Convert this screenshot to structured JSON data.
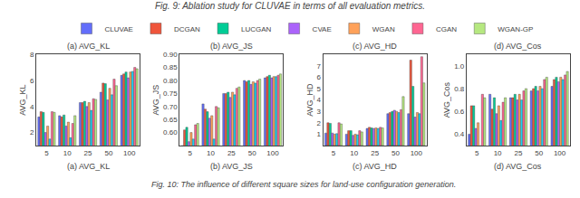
{
  "title": "Fig. 9: Ablation study for CLUVAE in terms of all evaluation metrics.",
  "subtitle": "Fig. 10: The influence of different square sizes for land-use configuration generation.",
  "legend": "top",
  "chart_data": [
    {
      "type": "bar",
      "title": "(a) AVG_KL",
      "subtitle": "(a) AVG_KL",
      "y_label": "AVG_KL",
      "categories": [
        "5",
        "10",
        "25",
        "50",
        "100"
      ],
      "ylim": [
        1,
        8
      ],
      "yticks": [
        2,
        4,
        6,
        8
      ],
      "grid": false,
      "series": [
        {
          "name": "CLUVAE",
          "color": "#636efa",
          "values": [
            3.2,
            3.3,
            4.3,
            5.1,
            6.4
          ]
        },
        {
          "name": "DCGAN",
          "color": "#EF553B",
          "values": [
            3.6,
            3.2,
            4.3,
            5.8,
            6.5
          ]
        },
        {
          "name": "LUCGAN",
          "color": "#00cc96",
          "values": [
            3.55,
            3.35,
            4.4,
            5.75,
            6.65
          ]
        },
        {
          "name": "CVAE",
          "color": "#ab63fa",
          "values": [
            2.0,
            2.5,
            4.0,
            4.5,
            6.2
          ]
        },
        {
          "name": "WGAN",
          "color": "#FFA15A",
          "values": [
            2.5,
            2.8,
            4.3,
            5.4,
            6.65
          ]
        },
        {
          "color": "#19d3f3",
          "values": [
            1.5,
            1.6,
            3.7,
            4.9,
            6.7
          ]
        },
        {
          "name": "CGAN",
          "color": "#FF6692",
          "values": [
            3.6,
            2.7,
            4.6,
            6.1,
            7.0
          ]
        },
        {
          "name": "WGAN-GP",
          "color": "#B6E880",
          "values": [
            3.55,
            3.3,
            4.55,
            5.6,
            6.9
          ]
        }
      ]
    },
    {
      "type": "bar",
      "title": "(b) AVG_JS",
      "subtitle": "(b) AVG_JS",
      "y_label": "AVG_JS",
      "categories": [
        "5",
        "10",
        "25",
        "50",
        "100"
      ],
      "ylim": [
        0.55,
        0.9
      ],
      "yticks": [
        {
          "value": 0.6,
          "label": "0.60"
        },
        0.65,
        {
          "value": 0.7,
          "label": "0.70"
        },
        0.75,
        {
          "value": 0.8,
          "label": "0.80"
        },
        0.85,
        {
          "value": 0.9,
          "label": "0.90"
        }
      ],
      "grid": false,
      "series": [
        {
          "name": "CLUVAE",
          "color": "#636efa",
          "values": [
            0.55,
            0.71,
            0.75,
            0.8,
            0.81
          ]
        },
        {
          "name": "DCGAN",
          "color": "#EF553B",
          "values": [
            0.61,
            0.69,
            0.75,
            0.795,
            0.815
          ]
        },
        {
          "name": "LUCGAN",
          "color": "#00cc96",
          "values": [
            0.62,
            0.68,
            0.755,
            0.8,
            0.82
          ]
        },
        {
          "name": "CVAE",
          "color": "#ab63fa",
          "values": [
            0.565,
            0.655,
            0.735,
            0.785,
            0.81
          ]
        },
        {
          "name": "WGAN",
          "color": "#FFA15A",
          "values": [
            0.6,
            0.665,
            0.755,
            0.795,
            0.815
          ]
        },
        {
          "color": "#19d3f3",
          "values": [
            0.575,
            0.575,
            0.745,
            0.79,
            0.815
          ]
        },
        {
          "name": "CGAN",
          "color": "#FF6692",
          "values": [
            0.63,
            0.7,
            0.77,
            0.8,
            0.82
          ]
        },
        {
          "name": "WGAN-GP",
          "color": "#B6E880",
          "values": [
            0.635,
            0.695,
            0.775,
            0.805,
            0.825
          ]
        }
      ]
    },
    {
      "type": "bar",
      "title": "(c) AVG_HD",
      "subtitle": "(c) AVG_HD",
      "y_label": "AVG_HD",
      "categories": [
        "5",
        "10",
        "25",
        "50",
        "100"
      ],
      "ylim": [
        0,
        8
      ],
      "yticks": [
        1,
        2,
        3,
        4,
        5,
        6,
        7
      ],
      "grid": false,
      "series": [
        {
          "name": "CLUVAE",
          "color": "#636efa",
          "values": [
            1.1,
            1.0,
            1.5,
            2.8,
            2.8
          ]
        },
        {
          "name": "DCGAN",
          "color": "#EF553B",
          "values": [
            2.0,
            1.3,
            1.6,
            2.9,
            7.5
          ]
        },
        {
          "name": "LUCGAN",
          "color": "#00cc96",
          "values": [
            1.95,
            1.3,
            1.55,
            3.0,
            5.2
          ]
        },
        {
          "name": "CVAE",
          "color": "#ab63fa",
          "values": [
            1.1,
            0.9,
            1.5,
            3.1,
            2.5
          ]
        },
        {
          "name": "WGAN",
          "color": "#FFA15A",
          "values": [
            1.0,
            1.0,
            1.55,
            3.0,
            2.9
          ]
        },
        {
          "color": "#19d3f3",
          "values": [
            1.05,
            0.95,
            1.5,
            2.9,
            2.8
          ]
        },
        {
          "name": "CGAN",
          "color": "#FF6692",
          "values": [
            2.0,
            1.3,
            1.6,
            3.15,
            7.8
          ]
        },
        {
          "name": "WGAN-GP",
          "color": "#B6E880",
          "values": [
            1.9,
            1.2,
            1.55,
            4.3,
            5.5
          ]
        }
      ]
    },
    {
      "type": "bar",
      "title": "(d) AVG_Cos",
      "subtitle": "(d) AVG_Cos",
      "y_label": "AVG_Cos",
      "categories": [
        "5",
        "10",
        "25",
        "50",
        "100"
      ],
      "ylim": [
        0.3,
        1.1
      ],
      "yticks": [
        0.4,
        0.6,
        0.8,
        {
          "value": 1.0,
          "label": "1.0"
        }
      ],
      "grid": false,
      "series": [
        {
          "name": "CLUVAE",
          "color": "#636efa",
          "values": [
            0.4,
            0.75,
            0.72,
            0.78,
            0.82
          ]
        },
        {
          "name": "DCGAN",
          "color": "#EF553B",
          "values": [
            0.65,
            0.62,
            0.72,
            0.8,
            0.88
          ]
        },
        {
          "name": "LUCGAN",
          "color": "#00cc96",
          "values": [
            0.65,
            0.72,
            0.75,
            0.82,
            0.9
          ]
        },
        {
          "name": "CVAE",
          "color": "#ab63fa",
          "values": [
            0.45,
            0.58,
            0.7,
            0.78,
            0.86
          ]
        },
        {
          "name": "WGAN",
          "color": "#FFA15A",
          "values": [
            0.5,
            0.65,
            0.75,
            0.82,
            0.9
          ]
        },
        {
          "color": "#19d3f3",
          "values": [
            0.3,
            0.52,
            0.7,
            0.8,
            0.88
          ]
        },
        {
          "name": "CGAN",
          "color": "#FF6692",
          "values": [
            0.75,
            0.68,
            0.78,
            0.88,
            0.92
          ]
        },
        {
          "name": "WGAN-GP",
          "color": "#B6E880",
          "values": [
            0.72,
            0.72,
            0.8,
            0.9,
            0.95
          ]
        }
      ]
    }
  ]
}
